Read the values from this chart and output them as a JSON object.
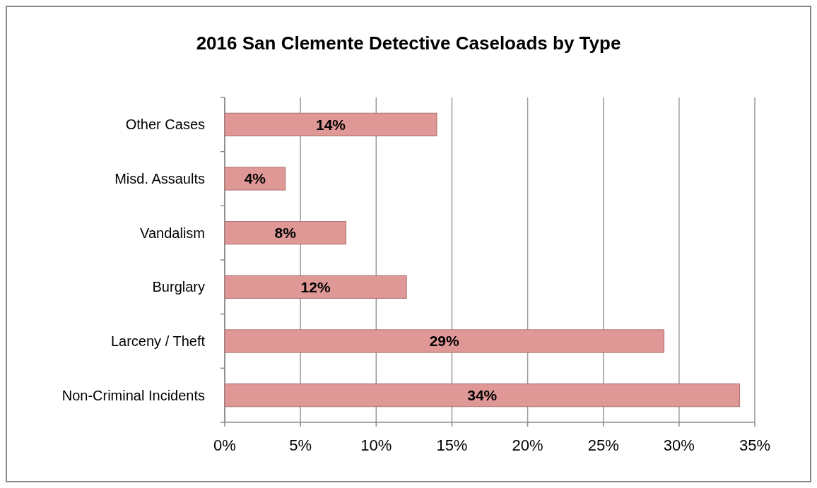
{
  "chart_data": {
    "type": "bar",
    "orientation": "horizontal",
    "title": "2016 San Clemente Detective Caseloads by Type",
    "categories": [
      "Other Cases",
      "Misd. Assaults",
      "Vandalism",
      "Burglary",
      "Larceny / Theft",
      "Non-Criminal Incidents"
    ],
    "values": [
      14,
      4,
      8,
      12,
      29,
      34
    ],
    "value_labels": [
      "14%",
      "4%",
      "8%",
      "12%",
      "29%",
      "34%"
    ],
    "color": "#df9896",
    "xlim": [
      0,
      35
    ],
    "xticks": [
      {
        "value": 0,
        "label": "0%"
      },
      {
        "value": 5,
        "label": "5%"
      },
      {
        "value": 10,
        "label": "10%"
      },
      {
        "value": 15,
        "label": "15%"
      },
      {
        "value": 20,
        "label": "20%"
      },
      {
        "value": 25,
        "label": "25%"
      },
      {
        "value": 30,
        "label": "30%"
      },
      {
        "value": 35,
        "label": "35%"
      }
    ],
    "grid": "x"
  }
}
